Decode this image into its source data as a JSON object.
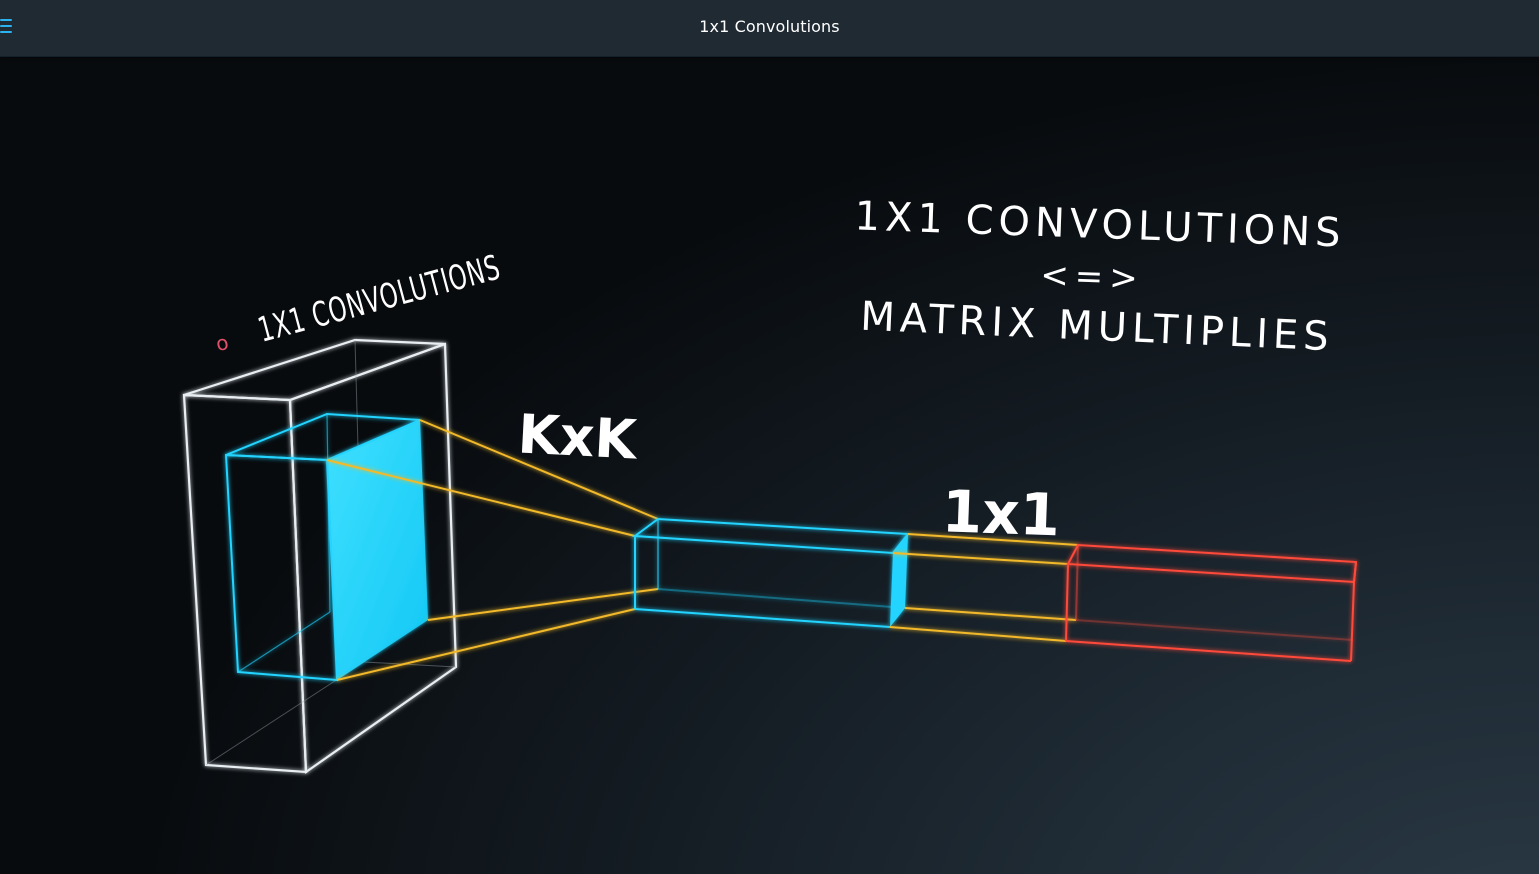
{
  "header": {
    "title": "1x1 Convolutions",
    "menu_icon": "hamburger-menu-icon"
  },
  "video": {
    "slanted_heading": "1X1 CONVOLUTIONS",
    "bullet_marker": "o",
    "title_line1": "1X1 CONVOLUTIONS",
    "title_line2": "<=>",
    "title_line3": "MATRIX MULTIPLIES",
    "label_kernel": "KxK",
    "label_1x1": "1x1",
    "colors": {
      "cube_outline": "#e8eef2",
      "patch_cyan": "#22d4ff",
      "projection_yellow": "#f2b92a",
      "output_red": "#ff4a3a",
      "bullet_red": "#e0506a"
    }
  }
}
